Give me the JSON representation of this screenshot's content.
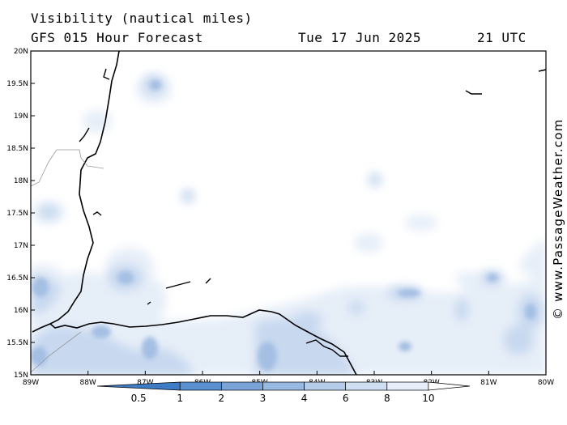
{
  "header": {
    "title": "Visibility (nautical miles)",
    "subtitle": "GFS 015 Hour Forecast",
    "date": "Tue 17 Jun 2025",
    "time": "21 UTC"
  },
  "credit": "© www.PassageWeather.com",
  "axes": {
    "lon_ticks": [
      "89W",
      "88W",
      "87W",
      "86W",
      "85W",
      "84W",
      "83W",
      "82W",
      "81W",
      "80W"
    ],
    "lat_ticks": [
      "20N",
      "19.5N",
      "19N",
      "18.5N",
      "18N",
      "17.5N",
      "17N",
      "16.5N",
      "16N",
      "15.5N",
      "15N"
    ]
  },
  "colorbar": {
    "labels": [
      "0.5",
      "1",
      "2",
      "3",
      "4",
      "6",
      "8",
      "10"
    ],
    "colors": [
      "#3e7cc4",
      "#5a8fd0",
      "#7aa4d8",
      "#98b9e1",
      "#b6cdea",
      "#d0def2",
      "#e7eef9",
      "#ffffff"
    ]
  },
  "shading": {
    "light": "#e6eef8",
    "mid": "#c7d8ef",
    "dark": "#a4bfe3"
  }
}
